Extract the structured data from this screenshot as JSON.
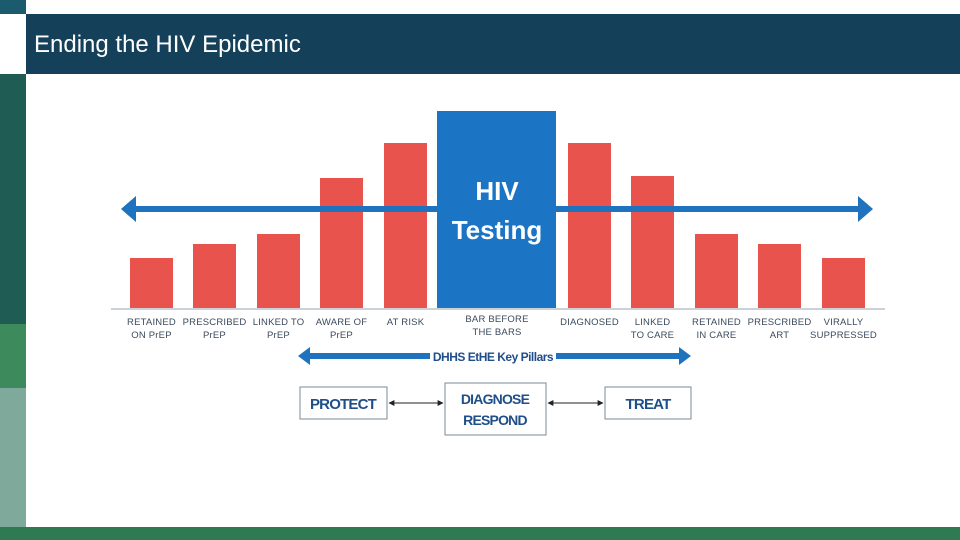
{
  "slide": {
    "title": "Ending the HIV Epidemic"
  },
  "diagram": {
    "center_box": {
      "line1": "HIV",
      "line2": "Testing"
    },
    "bars": [
      {
        "label_line1": "RETAINED",
        "label_line2": "ON PrEP",
        "level": 0.3
      },
      {
        "label_line1": "PRESCRIBED",
        "label_line2": "PrEP",
        "level": 0.39
      },
      {
        "label_line1": "LINKED TO",
        "label_line2": "PrEP",
        "level": 0.45
      },
      {
        "label_line1": "AWARE OF",
        "label_line2": "PrEP",
        "level": 0.79
      },
      {
        "label_line1": "AT RISK",
        "label_line2": "",
        "level": 1.0
      },
      {
        "label_line1": "DIAGNOSED",
        "label_line2": "",
        "level": 1.0
      },
      {
        "label_line1": "LINKED",
        "label_line2": "TO CARE",
        "level": 0.8
      },
      {
        "label_line1": "RETAINED",
        "label_line2": "IN CARE",
        "level": 0.45
      },
      {
        "label_line1": "PRESCRIBED",
        "label_line2": "ART",
        "level": 0.39
      },
      {
        "label_line1": "VIRALLY",
        "label_line2": "SUPPRESSED",
        "level": 0.3
      }
    ],
    "center_caption": {
      "line1": "BAR BEFORE",
      "line2": "THE BARS"
    },
    "pillars_label": "DHHS EtHE Key Pillars",
    "pillars": {
      "protect": "PROTECT",
      "diagnose": "DIAGNOSE",
      "respond": "RESPOND",
      "treat": "TREAT"
    },
    "colors": {
      "bar": "#e8534e",
      "center": "#1b75c4",
      "arrow": "#1e72be",
      "title_bar": "#14405a",
      "pillar_text": "#1f4e88"
    }
  }
}
